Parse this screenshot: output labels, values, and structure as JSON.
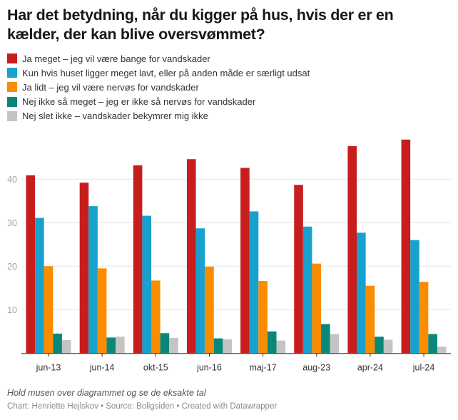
{
  "title": "Har det betydning, når du kigger på hus, hvis der er en kælder, der kan blive oversvømmet?",
  "legend": [
    {
      "label": "Ja meget – jeg vil være bange for vandskader",
      "color": "#c71e1d"
    },
    {
      "label": "Kun hvis huset ligger meget lavt, eller på anden måde er særligt udsat",
      "color": "#18a1cd"
    },
    {
      "label": "Ja lidt – jeg vil være nervøs for vandskader",
      "color": "#fa8c00"
    },
    {
      "label": "Nej ikke så meget – jeg er ikke så nervøs for vandskader",
      "color": "#09887a"
    },
    {
      "label": "Nej slet ikke – vandskader bekymrer mig ikke",
      "color": "#c4c4c4"
    }
  ],
  "chart_data": {
    "type": "bar",
    "title": "Har det betydning, når du kigger på hus, hvis der er en kælder, der kan blive oversvømmet?",
    "xlabel": "",
    "ylabel": "",
    "categories": [
      "jun-13",
      "jun-14",
      "okt-15",
      "jun-16",
      "maj-17",
      "aug-23",
      "apr-24",
      "jul-24"
    ],
    "series": [
      {
        "name": "Ja meget – jeg vil være bange for vandskader",
        "color": "#c71e1d",
        "values": [
          40.9,
          39.2,
          43.2,
          44.6,
          42.6,
          38.7,
          47.6,
          49.1
        ]
      },
      {
        "name": "Kun hvis huset ligger meget lavt, eller på anden måde er særligt udsat",
        "color": "#18a1cd",
        "values": [
          31.1,
          33.8,
          31.6,
          28.7,
          32.6,
          29.1,
          27.7,
          26.0
        ]
      },
      {
        "name": "Ja lidt – jeg vil være nervøs for vandskader",
        "color": "#fa8c00",
        "values": [
          20.0,
          19.5,
          16.7,
          19.9,
          16.6,
          20.6,
          15.5,
          16.4
        ]
      },
      {
        "name": "Nej ikke så meget – jeg er ikke så nervøs for vandskader",
        "color": "#09887a",
        "values": [
          4.5,
          3.6,
          4.6,
          3.4,
          5.0,
          6.7,
          3.8,
          4.4
        ]
      },
      {
        "name": "Nej slet ikke – vandskader bekymrer mig ikke",
        "color": "#c4c4c4",
        "values": [
          3.0,
          3.8,
          3.5,
          3.2,
          2.9,
          4.4,
          3.1,
          1.5
        ]
      }
    ],
    "yticks": [
      10,
      20,
      30,
      40
    ],
    "ylim": [
      0,
      50
    ],
    "grid": true,
    "legend_position": "top-left"
  },
  "notes": "Hold musen over diagrammet og se de eksakte tal",
  "byline": {
    "chart": "Chart: Henriette Hejlskov",
    "source": "Source: Boligsiden",
    "created": "Created with Datawrapper",
    "separator": " • "
  }
}
